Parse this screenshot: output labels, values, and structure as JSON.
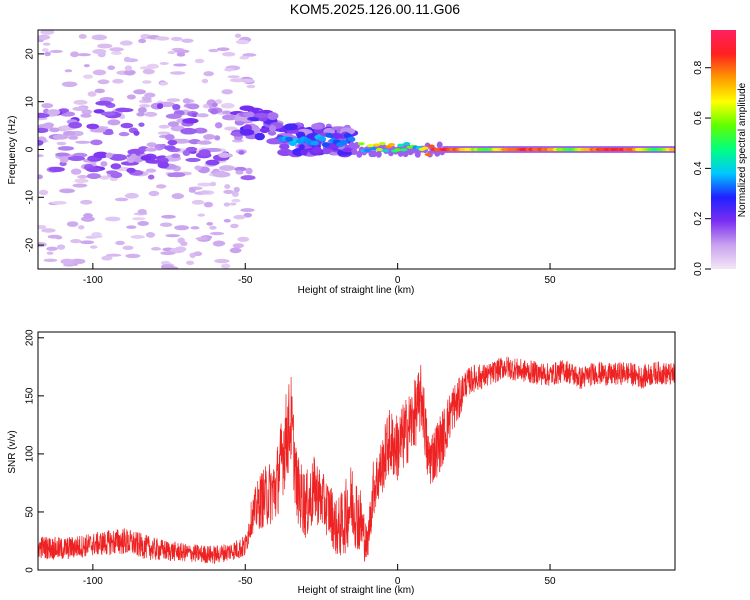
{
  "title": "KOM5.2025.126.00.11.G06",
  "chart_data": [
    {
      "type": "heatmap",
      "title": "KOM5.2025.126.00.11.G06",
      "xlabel": "Height of straight line (km)",
      "ylabel": "Frequency (Hz)",
      "xlim": [
        -118,
        91
      ],
      "ylim": [
        -25,
        25
      ],
      "xticks": [
        -100,
        -50,
        0,
        50
      ],
      "yticks": [
        -20,
        -10,
        0,
        10,
        20
      ],
      "grid": false,
      "colorbar": {
        "label": "Normalized spectral amplitude",
        "range": [
          0.0,
          0.95
        ],
        "ticks": [
          0.0,
          0.2,
          0.4,
          0.6,
          0.8
        ],
        "colormap": [
          "#f4e6f6",
          "#c9a2ee",
          "#7b2ff2",
          "#2020ff",
          "#00c8ff",
          "#00ff80",
          "#60ff00",
          "#ffff00",
          "#ff9900",
          "#ff2020",
          "#ff2060"
        ]
      },
      "description_of_regions": [
        {
          "x_range": [
            -118,
            -50
          ],
          "freq_range": [
            -25,
            25
          ],
          "amplitude": "low, scattered 0.02-0.15"
        },
        {
          "x_range": [
            -50,
            -15
          ],
          "freq_center": [
            5,
            0
          ],
          "amplitude": "0.1-0.35"
        },
        {
          "x_range": [
            -15,
            10
          ],
          "freq_center": 0,
          "amplitude": "0.3-0.9"
        },
        {
          "x_range": [
            10,
            91
          ],
          "freq_center": 0,
          "amplitude": "0.5-0.9"
        }
      ]
    },
    {
      "type": "line",
      "xlabel": "Height of straight line (km)",
      "ylabel": "SNR (v/v)",
      "xlim": [
        -118,
        91
      ],
      "ylim": [
        0,
        205
      ],
      "xticks": [
        -100,
        -50,
        0,
        50
      ],
      "yticks": [
        0,
        50,
        100,
        150,
        200
      ],
      "grid": false,
      "color": "#ee2222",
      "x": [
        -118,
        -110,
        -100,
        -90,
        -80,
        -70,
        -60,
        -55,
        -50,
        -48,
        -45,
        -40,
        -37,
        -35,
        -33,
        -30,
        -27,
        -25,
        -22,
        -20,
        -18,
        -15,
        -12,
        -10,
        -8,
        -5,
        -3,
        0,
        3,
        5,
        8,
        10,
        12,
        15,
        18,
        20,
        22,
        25,
        30,
        35,
        40,
        45,
        50,
        55,
        60,
        65,
        70,
        75,
        80,
        85,
        91
      ],
      "values": [
        20,
        18,
        22,
        25,
        18,
        15,
        13,
        16,
        20,
        45,
        60,
        70,
        110,
        130,
        70,
        55,
        70,
        60,
        50,
        35,
        40,
        60,
        40,
        20,
        70,
        90,
        110,
        105,
        120,
        130,
        150,
        95,
        100,
        115,
        140,
        145,
        160,
        165,
        168,
        175,
        172,
        170,
        168,
        172,
        165,
        170,
        168,
        170,
        166,
        170,
        168
      ],
      "noise_amplitude": [
        10,
        10,
        10,
        12,
        10,
        8,
        8,
        8,
        10,
        15,
        25,
        30,
        40,
        40,
        30,
        30,
        30,
        25,
        25,
        25,
        30,
        35,
        30,
        15,
        25,
        25,
        30,
        30,
        30,
        30,
        30,
        25,
        25,
        25,
        20,
        20,
        12,
        12,
        10,
        10,
        10,
        10,
        10,
        10,
        10,
        10,
        10,
        10,
        10,
        10,
        10
      ]
    }
  ]
}
